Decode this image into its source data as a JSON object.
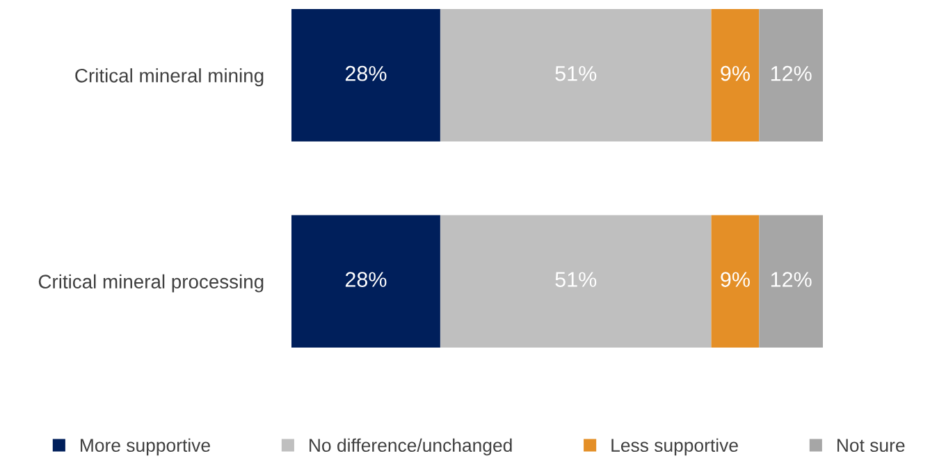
{
  "chart_data": {
    "type": "bar",
    "orientation": "horizontal",
    "stacked": true,
    "categories": [
      "Critical mineral mining",
      "Critical mineral processing"
    ],
    "series": [
      {
        "name": "More supportive",
        "color": "#001f5b",
        "values": [
          28,
          28
        ],
        "value_labels": [
          "28%",
          "28%"
        ]
      },
      {
        "name": "No difference/unchanged",
        "color": "#bfbfbf",
        "values": [
          51,
          51
        ],
        "value_labels": [
          "51%",
          "51%"
        ]
      },
      {
        "name": "Less supportive",
        "color": "#e48f27",
        "values": [
          9,
          9
        ],
        "value_labels": [
          "9%",
          "9%"
        ]
      },
      {
        "name": "Not sure",
        "color": "#a6a6a6",
        "values": [
          12,
          12
        ],
        "value_labels": [
          "12%",
          "12%"
        ]
      }
    ],
    "legend": "bottom",
    "tick_labels": "y",
    "grid": false
  }
}
